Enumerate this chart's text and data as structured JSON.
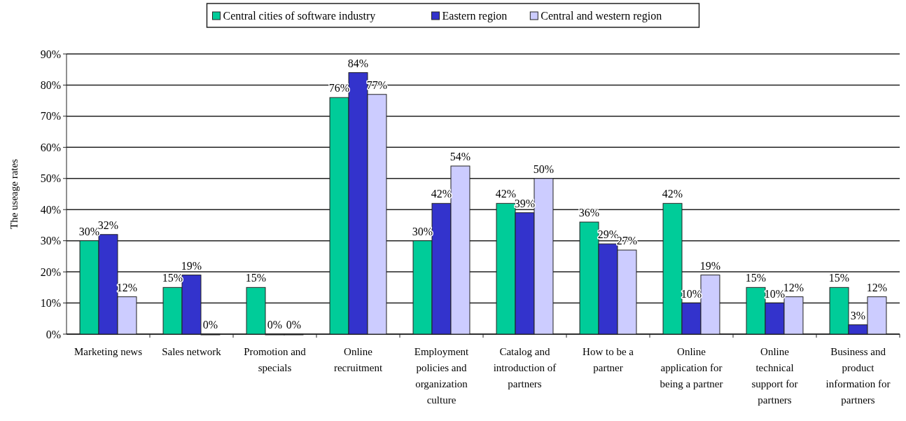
{
  "chart_data": {
    "type": "bar",
    "ylabel": "The useage rates",
    "categories": [
      "Marketing news",
      "Sales network",
      "Promotion and specials",
      "Online recruitment",
      "Employment policies and organization culture",
      "Catalog and introduction of partners",
      "How to be a partner",
      "Online application for being a partner",
      "Online technical support for partners",
      "Business and product information for partners"
    ],
    "series": [
      {
        "name": "Central cities of software industry",
        "color": "#00cc99",
        "values": [
          30,
          15,
          15,
          76,
          30,
          42,
          36,
          42,
          15,
          15
        ],
        "value_labels": [
          "30%",
          "15%",
          "15%",
          "76%",
          "30%",
          "42%",
          "36%",
          "42%",
          "15%",
          "15%"
        ]
      },
      {
        "name": "Eastern region",
        "color": "#3333cc",
        "values": [
          32,
          19,
          0,
          84,
          42,
          39,
          29,
          10,
          10,
          3
        ],
        "value_labels": [
          "32%",
          "19%",
          "0%",
          "84%",
          "42%",
          "39%",
          "29%",
          "10%",
          "10%",
          "3%"
        ]
      },
      {
        "name": "Central and western region",
        "color": "#ccccff",
        "values": [
          12,
          0,
          0,
          77,
          54,
          50,
          27,
          19,
          12,
          12
        ],
        "value_labels": [
          "12%",
          "0%",
          "0%",
          "77%",
          "54%",
          "50%",
          "27%",
          "19%",
          "12%",
          "12%"
        ]
      }
    ],
    "ylim": [
      0,
      90
    ],
    "yticks": [
      {
        "value": 0,
        "label": "0%"
      },
      {
        "value": 10,
        "label": "10%"
      },
      {
        "value": 20,
        "label": "20%"
      },
      {
        "value": 30,
        "label": "30%"
      },
      {
        "value": 40,
        "label": "40%"
      },
      {
        "value": 50,
        "label": "50%"
      },
      {
        "value": 60,
        "label": "60%"
      },
      {
        "value": 70,
        "label": "70%"
      },
      {
        "value": 80,
        "label": "80%"
      },
      {
        "value": 90,
        "label": "90%"
      }
    ],
    "grid": "y",
    "legend": "top"
  }
}
